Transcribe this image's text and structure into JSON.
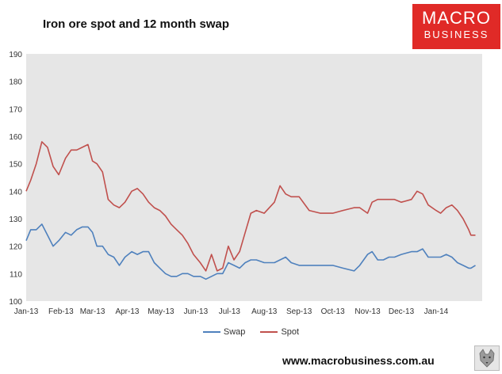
{
  "header": {
    "title": "Iron ore spot and 12 month swap",
    "logo_line1": "MACRO",
    "logo_line2": "BUSINESS"
  },
  "footer": {
    "url": "www.macrobusiness.com.au"
  },
  "colors": {
    "swap": "#4f81bd",
    "spot": "#c0504d",
    "plot_bg": "#e6e6e6",
    "logo": "#e02a27"
  },
  "chart_data": {
    "type": "line",
    "title": "Iron ore spot and 12 month swap",
    "xlabel": "",
    "ylabel": "",
    "ylim": [
      100,
      190
    ],
    "yticks": [
      100,
      110,
      120,
      130,
      140,
      150,
      160,
      170,
      180,
      190
    ],
    "xlim": [
      "2013-01-01",
      "2014-02-11"
    ],
    "categories": [
      "Jan-13",
      "Feb-13",
      "Mar-13",
      "Apr-13",
      "May-13",
      "Jun-13",
      "Jul-13",
      "Aug-13",
      "Sep-13",
      "Oct-13",
      "Nov-13",
      "Dec-13",
      "Jan-14"
    ],
    "grid": false,
    "legend": "bottom",
    "series": [
      {
        "name": "Swap",
        "color": "#4f81bd",
        "x": [
          "2013-01-01",
          "2013-01-05",
          "2013-01-10",
          "2013-01-15",
          "2013-01-20",
          "2013-01-25",
          "2013-01-30",
          "2013-02-05",
          "2013-02-10",
          "2013-02-15",
          "2013-02-20",
          "2013-02-25",
          "2013-03-01",
          "2013-03-05",
          "2013-03-10",
          "2013-03-15",
          "2013-03-20",
          "2013-03-25",
          "2013-03-30",
          "2013-04-05",
          "2013-04-10",
          "2013-04-15",
          "2013-04-20",
          "2013-04-25",
          "2013-04-30",
          "2013-05-05",
          "2013-05-10",
          "2013-05-15",
          "2013-05-20",
          "2013-05-25",
          "2013-05-30",
          "2013-06-05",
          "2013-06-10",
          "2013-06-15",
          "2013-06-20",
          "2013-06-25",
          "2013-06-30",
          "2013-07-05",
          "2013-07-10",
          "2013-07-15",
          "2013-07-20",
          "2013-07-25",
          "2013-08-01",
          "2013-08-10",
          "2013-08-15",
          "2013-08-20",
          "2013-08-25",
          "2013-09-01",
          "2013-09-10",
          "2013-09-20",
          "2013-10-01",
          "2013-10-10",
          "2013-10-20",
          "2013-10-25",
          "2013-11-01",
          "2013-11-05",
          "2013-11-10",
          "2013-11-15",
          "2013-11-20",
          "2013-11-25",
          "2013-12-01",
          "2013-12-10",
          "2013-12-15",
          "2013-12-20",
          "2013-12-25",
          "2014-01-01",
          "2014-01-05",
          "2014-01-10",
          "2014-01-15",
          "2014-01-20",
          "2014-01-25",
          "2014-01-30",
          "2014-02-01",
          "2014-02-05"
        ],
        "values": [
          122,
          126,
          126,
          128,
          124,
          120,
          122,
          125,
          124,
          126,
          127,
          127,
          125,
          120,
          120,
          117,
          116,
          113,
          116,
          118,
          117,
          118,
          118,
          114,
          112,
          110,
          109,
          109,
          110,
          110,
          109,
          109,
          108,
          109,
          110,
          110,
          114,
          113,
          112,
          114,
          115,
          115,
          114,
          114,
          115,
          116,
          114,
          113,
          113,
          113,
          113,
          112,
          111,
          113,
          117,
          118,
          115,
          115,
          116,
          116,
          117,
          118,
          118,
          119,
          116,
          116,
          116,
          117,
          116,
          114,
          113,
          112,
          112,
          113
        ]
      },
      {
        "name": "Spot",
        "color": "#c0504d",
        "x": [
          "2013-01-01",
          "2013-01-05",
          "2013-01-10",
          "2013-01-15",
          "2013-01-20",
          "2013-01-25",
          "2013-01-30",
          "2013-02-05",
          "2013-02-10",
          "2013-02-15",
          "2013-02-20",
          "2013-02-25",
          "2013-03-01",
          "2013-03-05",
          "2013-03-10",
          "2013-03-15",
          "2013-03-20",
          "2013-03-25",
          "2013-03-30",
          "2013-04-05",
          "2013-04-10",
          "2013-04-15",
          "2013-04-20",
          "2013-04-25",
          "2013-04-30",
          "2013-05-05",
          "2013-05-10",
          "2013-05-15",
          "2013-05-20",
          "2013-05-25",
          "2013-05-30",
          "2013-06-05",
          "2013-06-10",
          "2013-06-15",
          "2013-06-20",
          "2013-06-25",
          "2013-06-30",
          "2013-07-05",
          "2013-07-10",
          "2013-07-15",
          "2013-07-20",
          "2013-07-25",
          "2013-08-01",
          "2013-08-10",
          "2013-08-15",
          "2013-08-20",
          "2013-08-25",
          "2013-09-01",
          "2013-09-10",
          "2013-09-20",
          "2013-10-01",
          "2013-10-10",
          "2013-10-20",
          "2013-10-25",
          "2013-11-01",
          "2013-11-05",
          "2013-11-10",
          "2013-11-15",
          "2013-11-20",
          "2013-11-25",
          "2013-12-01",
          "2013-12-10",
          "2013-12-15",
          "2013-12-20",
          "2013-12-25",
          "2014-01-01",
          "2014-01-05",
          "2014-01-10",
          "2014-01-15",
          "2014-01-20",
          "2014-01-25",
          "2014-01-30",
          "2014-02-01",
          "2014-02-05"
        ],
        "values": [
          140,
          144,
          150,
          158,
          156,
          149,
          146,
          152,
          155,
          155,
          156,
          157,
          151,
          150,
          147,
          137,
          135,
          134,
          136,
          140,
          141,
          139,
          136,
          134,
          133,
          131,
          128,
          126,
          124,
          121,
          117,
          114,
          111,
          117,
          111,
          112,
          120,
          115,
          118,
          125,
          132,
          133,
          132,
          136,
          142,
          139,
          138,
          138,
          133,
          132,
          132,
          133,
          134,
          134,
          132,
          136,
          137,
          137,
          137,
          137,
          136,
          137,
          140,
          139,
          135,
          133,
          132,
          134,
          135,
          133,
          130,
          126,
          124,
          124
        ]
      }
    ]
  }
}
